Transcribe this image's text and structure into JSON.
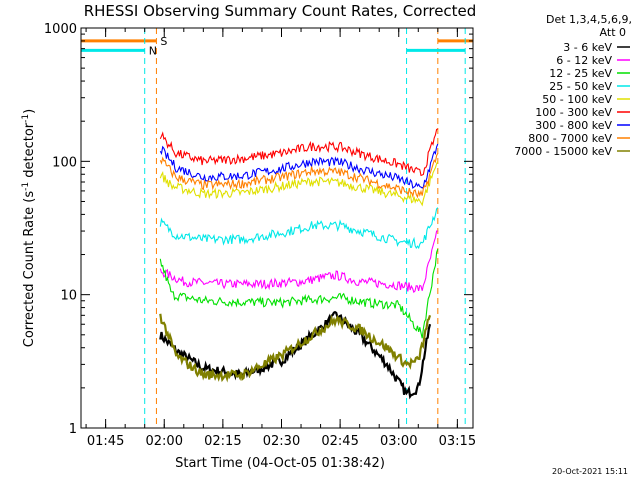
{
  "chart_data": {
    "type": "line",
    "title": "RHESSI Observing Summary Count Rates, Corrected",
    "xlabel": "Start Time (04-Oct-05 01:38:42)",
    "ylabel": "Corrected Count Rate (s⁻¹ detector⁻¹)",
    "ylabel_parts": [
      "Corrected Count Rate (s",
      "-1",
      " detector",
      "-1",
      ")"
    ],
    "y_scale": "log",
    "ylim": [
      1,
      1000
    ],
    "y_ticks": [
      "1",
      "10",
      "100",
      "1000"
    ],
    "xlim": [
      "01:38:42",
      "03:19:00"
    ],
    "x_ticks": [
      "01:45",
      "02:00",
      "02:15",
      "02:30",
      "02:45",
      "03:00",
      "03:15"
    ],
    "legend_header": [
      "Det 1,3,4,5,6,9,",
      "Att 0"
    ],
    "legend_placement": "right",
    "timestamp": "20-Oct-2021 15:11",
    "flags": [
      {
        "label": "S",
        "color": "#ff8000",
        "level": 800,
        "segments": [
          [
            "01:38:42",
            "01:58:00"
          ],
          [
            "03:10:00",
            "03:19:00"
          ]
        ],
        "edges": [
          "01:58:00",
          "03:10:00"
        ]
      },
      {
        "label": "N",
        "color": "#00e8e8",
        "level": 680,
        "segments": [
          [
            "01:38:42",
            "01:55:00"
          ],
          [
            "03:02:00",
            "03:17:00"
          ]
        ],
        "edges": [
          "01:55:00",
          "03:02:00",
          "03:17:00"
        ]
      }
    ],
    "series": [
      {
        "name": "3 - 6 keV",
        "color": "#000000",
        "x": [
          "01:59:00",
          "02:03:00",
          "02:10:00",
          "02:20:00",
          "02:30:00",
          "02:38:00",
          "02:44:00",
          "02:50:00",
          "02:57:00",
          "03:02:00",
          "03:05:00",
          "03:08:00"
        ],
        "y": [
          5,
          3.8,
          2.8,
          2.5,
          3.2,
          5,
          7,
          5,
          3,
          1.8,
          2,
          6
        ]
      },
      {
        "name": "6 - 12 keV",
        "color": "#ff00ff",
        "x": [
          "01:59:00",
          "02:05:00",
          "02:15:00",
          "02:25:00",
          "02:35:00",
          "02:44:00",
          "02:50:00",
          "02:58:00",
          "03:06:00",
          "03:10:00"
        ],
        "y": [
          15,
          12.5,
          12,
          12,
          12.5,
          14,
          12.5,
          12,
          11,
          30
        ]
      },
      {
        "name": "12 - 25 keV",
        "color": "#00e000",
        "x": [
          "01:59:00",
          "02:02:00",
          "02:10:00",
          "02:20:00",
          "02:30:00",
          "02:40:00",
          "02:45:00",
          "02:52:00",
          "03:00:00",
          "03:06:00",
          "03:10:00"
        ],
        "y": [
          18,
          10,
          9,
          8.8,
          8.7,
          9.3,
          9.5,
          8.7,
          8.3,
          5,
          22
        ]
      },
      {
        "name": "25 - 50 keV",
        "color": "#00e8e8",
        "x": [
          "01:59:00",
          "02:03:00",
          "02:10:00",
          "02:20:00",
          "02:30:00",
          "02:38:00",
          "02:45:00",
          "02:52:00",
          "03:00:00",
          "03:06:00",
          "03:10:00"
        ],
        "y": [
          35,
          28,
          26,
          26,
          29,
          33,
          33,
          29,
          25,
          24,
          45
        ]
      },
      {
        "name": "50 - 100 keV",
        "color": "#e0e000",
        "x": [
          "01:59:00",
          "02:02:00",
          "02:10:00",
          "02:20:00",
          "02:30:00",
          "02:38:00",
          "02:45:00",
          "02:52:00",
          "03:00:00",
          "03:06:00",
          "03:10:00"
        ],
        "y": [
          80,
          65,
          57,
          58,
          65,
          71,
          69,
          62,
          55,
          50,
          100
        ]
      },
      {
        "name": "100 - 300 keV",
        "color": "#ff0000",
        "x": [
          "01:59:00",
          "02:03:00",
          "02:10:00",
          "02:20:00",
          "02:30:00",
          "02:38:00",
          "02:45:00",
          "02:52:00",
          "03:00:00",
          "03:06:00",
          "03:10:00"
        ],
        "y": [
          160,
          115,
          100,
          105,
          115,
          130,
          128,
          110,
          95,
          80,
          175
        ]
      },
      {
        "name": "300 - 800 keV",
        "color": "#0000ff",
        "x": [
          "01:59:00",
          "02:03:00",
          "02:10:00",
          "02:20:00",
          "02:30:00",
          "02:38:00",
          "02:45:00",
          "02:52:00",
          "03:00:00",
          "03:06:00",
          "03:10:00"
        ],
        "y": [
          125,
          90,
          76,
          78,
          88,
          100,
          98,
          85,
          74,
          62,
          135
        ]
      },
      {
        "name": "800 - 7000 keV",
        "color": "#ff8000",
        "x": [
          "01:59:00",
          "02:03:00",
          "02:10:00",
          "02:20:00",
          "02:30:00",
          "02:38:00",
          "02:45:00",
          "02:52:00",
          "03:00:00",
          "03:06:00",
          "03:10:00"
        ],
        "y": [
          105,
          76,
          66,
          68,
          76,
          85,
          83,
          72,
          62,
          55,
          115
        ]
      },
      {
        "name": "7000 - 15000 keV",
        "color": "#808000",
        "x": [
          "01:59:00",
          "02:03:00",
          "02:10:00",
          "02:20:00",
          "02:30:00",
          "02:38:00",
          "02:44:00",
          "02:50:00",
          "02:57:00",
          "03:02:00",
          "03:05:00",
          "03:08:00"
        ],
        "y": [
          7,
          3.5,
          2.5,
          2.5,
          3.5,
          5,
          6.5,
          5.5,
          4,
          3,
          3.2,
          7
        ]
      }
    ]
  }
}
